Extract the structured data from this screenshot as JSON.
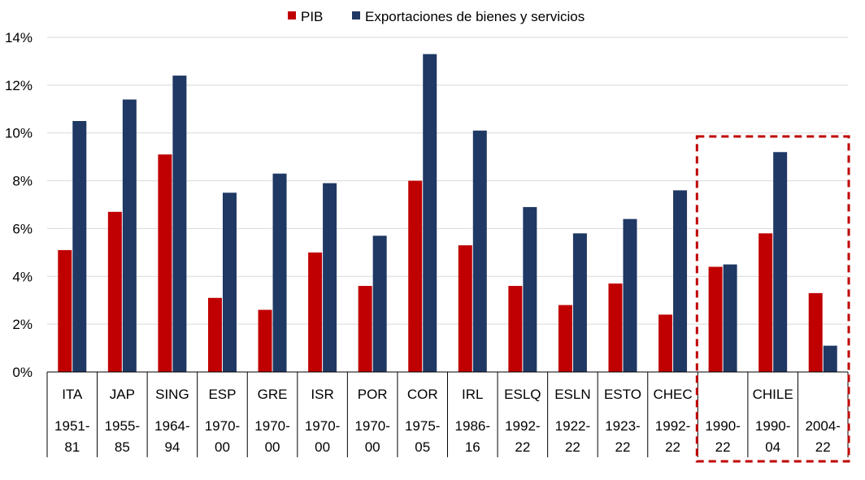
{
  "chart_data": {
    "type": "bar",
    "categories": [
      {
        "code": "ITA",
        "period": [
          "1951-",
          "81"
        ]
      },
      {
        "code": "JAP",
        "period": [
          "1955-",
          "85"
        ]
      },
      {
        "code": "SING",
        "period": [
          "1964-",
          "94"
        ]
      },
      {
        "code": "ESP",
        "period": [
          "1970-",
          "00"
        ]
      },
      {
        "code": "GRE",
        "period": [
          "1970-",
          "00"
        ]
      },
      {
        "code": "ISR",
        "period": [
          "1970-",
          "00"
        ]
      },
      {
        "code": "POR",
        "period": [
          "1970-",
          "00"
        ]
      },
      {
        "code": "COR",
        "period": [
          "1975-",
          "05"
        ]
      },
      {
        "code": "IRL",
        "period": [
          "1986-",
          "16"
        ]
      },
      {
        "code": "ESLQ",
        "period": [
          "1992-",
          "22"
        ]
      },
      {
        "code": "ESLN",
        "period": [
          "1922-",
          "22"
        ]
      },
      {
        "code": "ESTO",
        "period": [
          "1923-",
          "22"
        ]
      },
      {
        "code": "CHEC",
        "period": [
          "1992-",
          "22"
        ]
      },
      {
        "code": "",
        "period": [
          "1990-",
          "22"
        ]
      },
      {
        "code": "CHILE",
        "period": [
          "1990-",
          "04"
        ]
      },
      {
        "code": "",
        "period": [
          "2004-",
          "22"
        ]
      }
    ],
    "series": [
      {
        "name": "PIB",
        "color": "#c00000",
        "values": [
          5.1,
          6.7,
          9.1,
          3.1,
          2.6,
          5.0,
          3.6,
          8.0,
          5.3,
          3.6,
          2.8,
          3.7,
          2.4,
          4.4,
          5.8,
          3.3
        ]
      },
      {
        "name": "Exportaciones de bienes y servicios",
        "color": "#1f3864",
        "values": [
          10.5,
          11.4,
          12.4,
          7.5,
          8.3,
          7.9,
          5.7,
          13.3,
          10.1,
          6.9,
          5.8,
          6.4,
          7.6,
          4.5,
          9.2,
          1.1
        ]
      }
    ],
    "ylim": [
      0,
      14
    ],
    "yticks": [
      0,
      2,
      4,
      6,
      8,
      10,
      12,
      14
    ],
    "ytick_labels": [
      "0%",
      "2%",
      "4%",
      "6%",
      "8%",
      "10%",
      "12%",
      "14%"
    ],
    "grid": true,
    "legend_position": "top-center",
    "highlight": {
      "from_index": 13,
      "to_index": 15,
      "style": "dashed",
      "color": "#c00000"
    }
  }
}
